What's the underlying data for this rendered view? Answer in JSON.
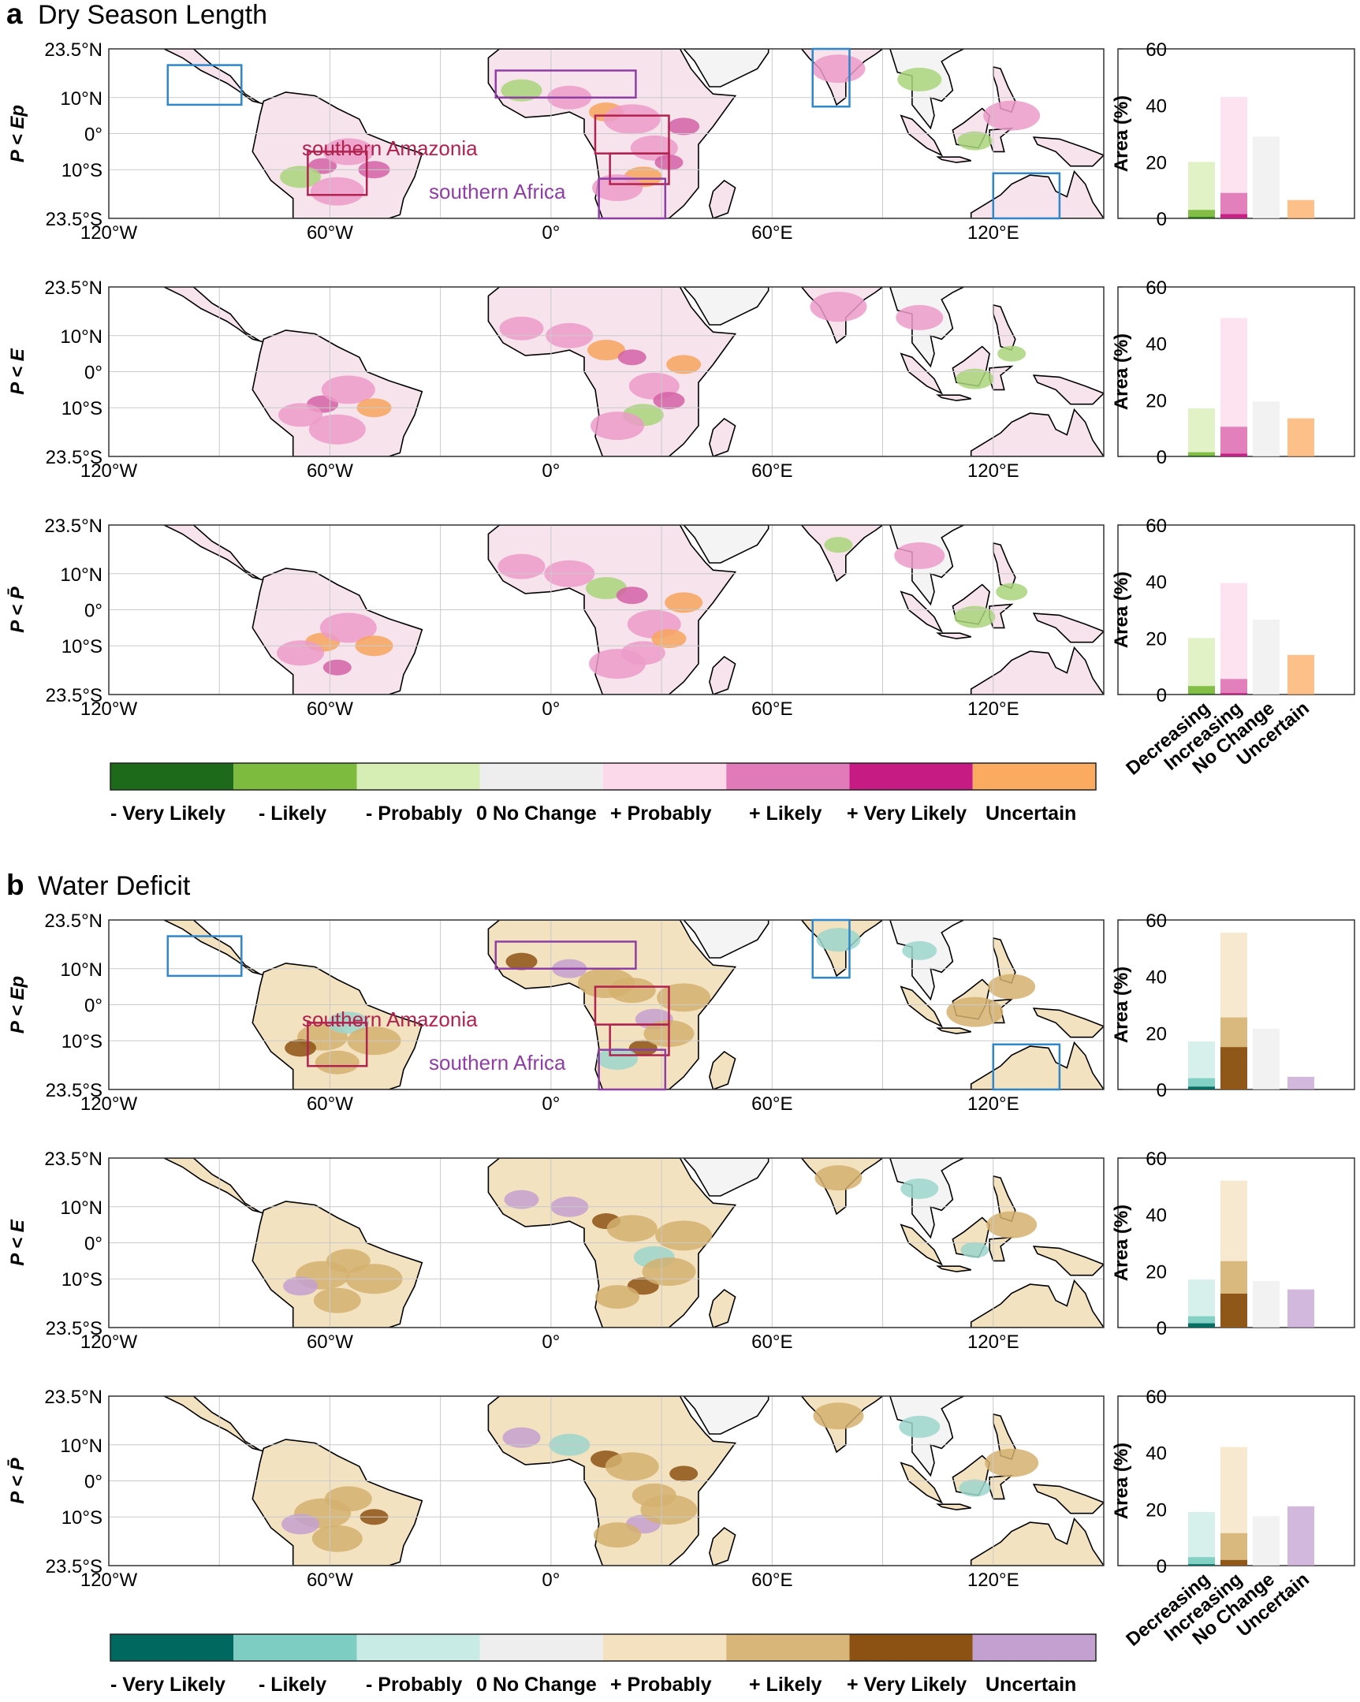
{
  "figure": {
    "panels": [
      {
        "letter": "a",
        "title": "Dry Season Length",
        "scheme": "dry",
        "rows": [
          {
            "label": "P < Ep",
            "bar_data_index": 0
          },
          {
            "label": "P < E",
            "bar_data_index": 1
          },
          {
            "label": "P < P̄",
            "bar_data_index": 2
          }
        ],
        "region_labels": [
          "southern Amazonia",
          "southern Africa"
        ],
        "colorbar_labels": [
          "- Very Likely",
          "- Likely",
          "- Probably",
          "0 No Change",
          "+ Probably",
          "+ Likely",
          "+ Very Likely",
          "Uncertain"
        ],
        "colorbar_colors": [
          "#1d6b1a",
          "#7dbb3f",
          "#d6edb3",
          "#eeeeee",
          "#fbd9ea",
          "#e07ab8",
          "#c61b83",
          "#fbab60"
        ]
      },
      {
        "letter": "b",
        "title": "Water Deficit",
        "scheme": "wet",
        "rows": [
          {
            "label": "P < Ep",
            "bar_data_index": 3
          },
          {
            "label": "P < E",
            "bar_data_index": 4
          },
          {
            "label": "P < P̄",
            "bar_data_index": 5
          }
        ],
        "region_labels": [
          "southern Amazonia",
          "southern Africa"
        ],
        "colorbar_labels": [
          "- Very Likely",
          "- Likely",
          "- Probably",
          "0 No Change",
          "+ Probably",
          "+ Likely",
          "+ Very Likely",
          "Uncertain"
        ],
        "colorbar_colors": [
          "#00685e",
          "#7ecdc2",
          "#c9ebe5",
          "#eeeeee",
          "#f4e1bf",
          "#d8b679",
          "#8c5213",
          "#c3a0d0"
        ]
      }
    ],
    "map_axes": {
      "x_ticks": [
        "120°W",
        "60°W",
        "0°",
        "60°E",
        "120°E"
      ],
      "y_ticks": [
        "23.5°N",
        "10°N",
        "0°",
        "10°S",
        "23.5°S"
      ]
    }
  },
  "chart_data": [
    {
      "type": "bar",
      "panel": "a",
      "row": "P < Ep",
      "categories": [
        "Decreasing",
        "Increasing",
        "No Change",
        "Uncertain"
      ],
      "ylabel": "Area (%)",
      "ylim": [
        0,
        60
      ],
      "yticks": [
        0,
        20,
        40,
        60
      ],
      "series": [
        {
          "name": "Probably",
          "values": [
            20,
            43,
            29,
            6.5
          ]
        },
        {
          "name": "Likely",
          "values": [
            3,
            9,
            null,
            null
          ]
        },
        {
          "name": "Very Likely",
          "values": [
            0.5,
            1.5,
            null,
            null
          ]
        }
      ]
    },
    {
      "type": "bar",
      "panel": "a",
      "row": "P < E",
      "categories": [
        "Decreasing",
        "Increasing",
        "No Change",
        "Uncertain"
      ],
      "ylabel": "Area (%)",
      "ylim": [
        0,
        60
      ],
      "yticks": [
        0,
        20,
        40,
        60
      ],
      "series": [
        {
          "name": "Probably",
          "values": [
            17,
            49,
            19.5,
            13.5
          ]
        },
        {
          "name": "Likely",
          "values": [
            1.5,
            10.5,
            null,
            null
          ]
        },
        {
          "name": "Very Likely",
          "values": [
            0.3,
            1.0,
            null,
            null
          ]
        }
      ]
    },
    {
      "type": "bar",
      "panel": "a",
      "row": "P < P̄",
      "categories": [
        "Decreasing",
        "Increasing",
        "No Change",
        "Uncertain"
      ],
      "ylabel": "Area (%)",
      "ylim": [
        0,
        60
      ],
      "yticks": [
        0,
        20,
        40,
        60
      ],
      "series": [
        {
          "name": "Probably",
          "values": [
            20,
            39.5,
            26.5,
            14
          ]
        },
        {
          "name": "Likely",
          "values": [
            3,
            5.5,
            null,
            null
          ]
        },
        {
          "name": "Very Likely",
          "values": [
            0.3,
            0.5,
            null,
            null
          ]
        }
      ]
    },
    {
      "type": "bar",
      "panel": "b",
      "row": "P < Ep",
      "categories": [
        "Decreasing",
        "Increasing",
        "No Change",
        "Uncertain"
      ],
      "ylabel": "Area (%)",
      "ylim": [
        0,
        60
      ],
      "yticks": [
        0,
        20,
        40,
        60
      ],
      "series": [
        {
          "name": "Probably",
          "values": [
            17,
            55.5,
            21.5,
            4.5
          ]
        },
        {
          "name": "Likely",
          "values": [
            4,
            25.5,
            null,
            null
          ]
        },
        {
          "name": "Very Likely",
          "values": [
            1,
            15,
            null,
            null
          ]
        }
      ]
    },
    {
      "type": "bar",
      "panel": "b",
      "row": "P < E",
      "categories": [
        "Decreasing",
        "Increasing",
        "No Change",
        "Uncertain"
      ],
      "ylabel": "Area (%)",
      "ylim": [
        0,
        60
      ],
      "yticks": [
        0,
        20,
        40,
        60
      ],
      "series": [
        {
          "name": "Probably",
          "values": [
            17,
            52,
            16.5,
            13.5
          ]
        },
        {
          "name": "Likely",
          "values": [
            4,
            23.5,
            null,
            null
          ]
        },
        {
          "name": "Very Likely",
          "values": [
            1.5,
            12,
            null,
            null
          ]
        }
      ]
    },
    {
      "type": "bar",
      "panel": "b",
      "row": "P < P̄",
      "categories": [
        "Decreasing",
        "Increasing",
        "No Change",
        "Uncertain"
      ],
      "ylabel": "Area (%)",
      "ylim": [
        0,
        60
      ],
      "yticks": [
        0,
        20,
        40,
        60
      ],
      "series": [
        {
          "name": "Probably",
          "values": [
            19,
            42,
            17.5,
            21
          ]
        },
        {
          "name": "Likely",
          "values": [
            3,
            11.5,
            null,
            null
          ]
        },
        {
          "name": "Very Likely",
          "values": [
            0.5,
            2,
            null,
            null
          ]
        }
      ]
    }
  ]
}
